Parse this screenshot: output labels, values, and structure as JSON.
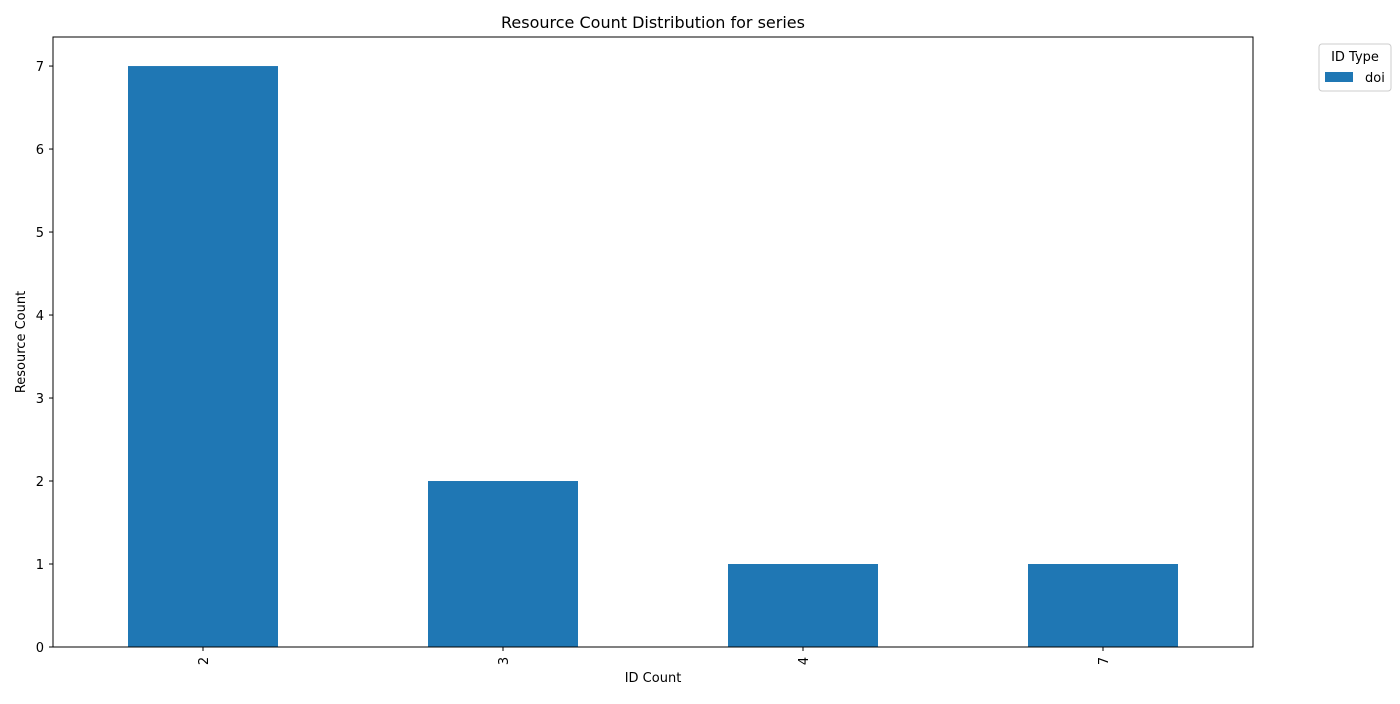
{
  "chart_data": {
    "type": "bar",
    "title": "Resource Count Distribution for series",
    "xlabel": "ID Count",
    "ylabel": "Resource Count",
    "categories": [
      "2",
      "3",
      "4",
      "7"
    ],
    "series": [
      {
        "name": "doi",
        "values": [
          7,
          2,
          1,
          1
        ],
        "color": "#1f77b4"
      }
    ],
    "ylim": [
      0,
      7.35
    ],
    "yticks": [
      0,
      1,
      2,
      3,
      4,
      5,
      6,
      7
    ],
    "xtick_rotation": -90,
    "grid": false,
    "legend": {
      "title": "ID Type",
      "placement": "outside-top-right"
    }
  }
}
